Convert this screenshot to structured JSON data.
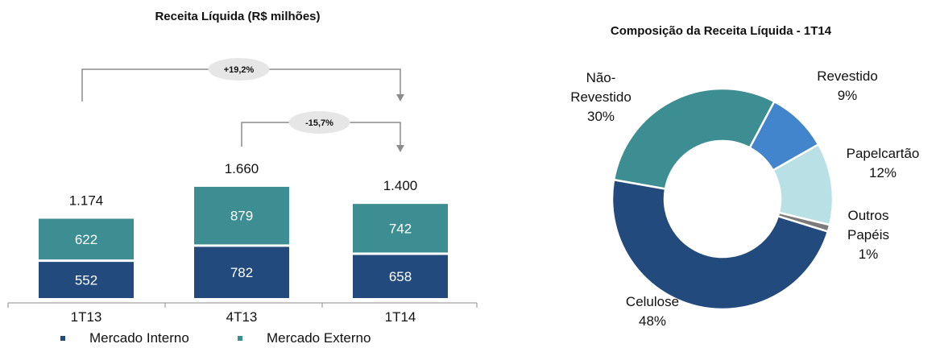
{
  "colors": {
    "interno": "#234a7d",
    "externo": "#3d8e92",
    "naoRevestido": "#3d8e92",
    "revestido": "#4285cc",
    "papelcartao": "#b9e0e4",
    "outros": "#7b7b7b",
    "celulose": "#234a7d",
    "bubble": "#e6e6e6",
    "axis": "#8c8c8c"
  },
  "chart_data": [
    {
      "type": "bar",
      "title": "Receita Líquida (R$ milhões)",
      "categories": [
        "1T13",
        "4T13",
        "1T14"
      ],
      "series": [
        {
          "name": "Mercado Interno",
          "values": [
            552,
            782,
            658
          ],
          "labels": [
            "552",
            "782",
            "658"
          ]
        },
        {
          "name": "Mercado Externo",
          "values": [
            622,
            879,
            742
          ],
          "labels": [
            "622",
            "879",
            "742"
          ]
        }
      ],
      "totals": [
        1174,
        1660,
        1400
      ],
      "total_labels": [
        "1.174",
        "1.660",
        "1.400"
      ],
      "annotations": [
        {
          "text": "+19,2%",
          "from": "1T13",
          "to": "1T14"
        },
        {
          "text": "-15,7%",
          "from": "4T13",
          "to": "1T14"
        }
      ],
      "legend_position": "bottom"
    },
    {
      "type": "pie",
      "subtype": "donut",
      "title": "Composição da Receita Líquida - 1T14",
      "slices": [
        {
          "key": "naoRevestido",
          "label_lines": [
            "Não-",
            "Revestido",
            "30%"
          ],
          "value": 30
        },
        {
          "key": "revestido",
          "label_lines": [
            "Revestido",
            "9%"
          ],
          "value": 9
        },
        {
          "key": "papelcartao",
          "label_lines": [
            "Papelcartão",
            "12%"
          ],
          "value": 12
        },
        {
          "key": "outros",
          "label_lines": [
            "Outros",
            "Papéis",
            "1%"
          ],
          "value": 1
        },
        {
          "key": "celulose",
          "label_lines": [
            "Celulose",
            "48%"
          ],
          "value": 48
        }
      ]
    }
  ]
}
